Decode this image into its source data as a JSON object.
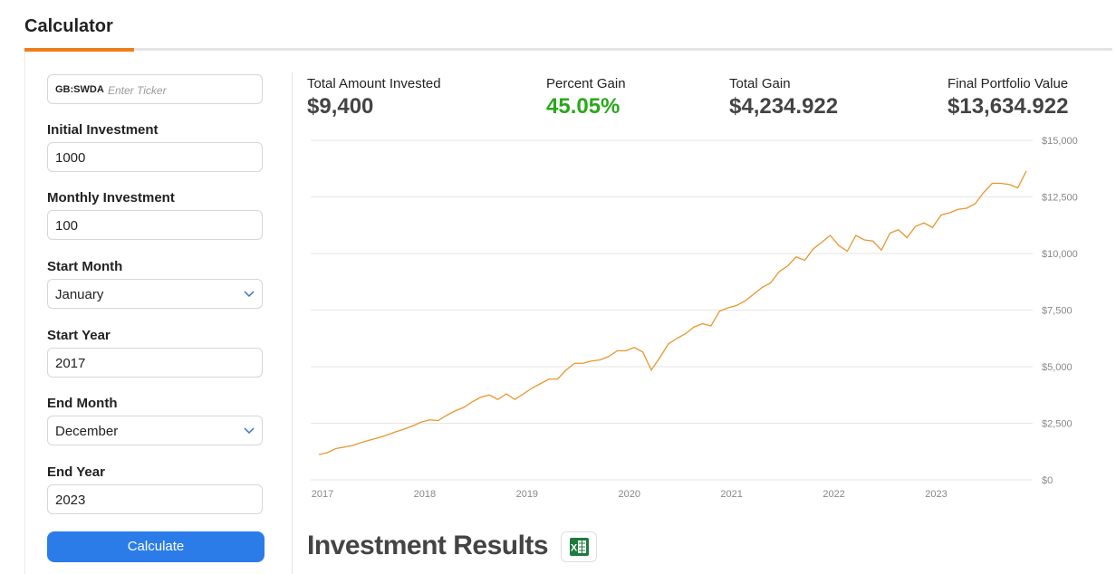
{
  "header": {
    "title": "Calculator"
  },
  "form": {
    "ticker": {
      "value": "GB:SWDA",
      "placeholder": "Enter Ticker"
    },
    "fields": [
      {
        "label": "Initial Investment",
        "value": "1000"
      },
      {
        "label": "Monthly Investment",
        "value": "100"
      },
      {
        "label": "Start Month",
        "value": "January"
      },
      {
        "label": "Start Year",
        "value": "2017"
      },
      {
        "label": "End Month",
        "value": "December"
      },
      {
        "label": "End Year",
        "value": "2023"
      }
    ],
    "button": "Calculate"
  },
  "stats": [
    {
      "label": "Total Amount Invested",
      "value": "$9,400"
    },
    {
      "label": "Percent Gain",
      "value": "45.05%"
    },
    {
      "label": "Total Gain",
      "value": "$4,234.922"
    },
    {
      "label": "Final Portfolio Value",
      "value": "$13,634.922"
    }
  ],
  "chart_data": {
    "type": "line",
    "categories": [
      "2017",
      null,
      null,
      null,
      null,
      null,
      null,
      null,
      null,
      null,
      null,
      null,
      "2018",
      null,
      null,
      null,
      null,
      null,
      null,
      null,
      null,
      null,
      null,
      null,
      "2019",
      null,
      null,
      null,
      null,
      null,
      null,
      null,
      null,
      null,
      null,
      null,
      "2020",
      null,
      null,
      null,
      null,
      null,
      null,
      null,
      null,
      null,
      null,
      null,
      "2021",
      null,
      null,
      null,
      null,
      null,
      null,
      null,
      null,
      null,
      null,
      null,
      "2022",
      null,
      null,
      null,
      null,
      null,
      null,
      null,
      null,
      null,
      null,
      null,
      "2023",
      null,
      null,
      null,
      null,
      null,
      null,
      null,
      null,
      null,
      null,
      null
    ],
    "values": [
      1120,
      1200,
      1380,
      1450,
      1520,
      1650,
      1760,
      1860,
      1980,
      2120,
      2240,
      2380,
      2550,
      2650,
      2620,
      2850,
      3050,
      3200,
      3450,
      3650,
      3750,
      3550,
      3800,
      3550,
      3800,
      4050,
      4250,
      4450,
      4450,
      4850,
      5150,
      5150,
      5250,
      5300,
      5450,
      5700,
      5700,
      5850,
      5650,
      4850,
      5400,
      6000,
      6250,
      6450,
      6750,
      6900,
      6800,
      7450,
      7600,
      7700,
      7900,
      8200,
      8500,
      8700,
      9200,
      9450,
      9850,
      9700,
      10200,
      10500,
      10800,
      10350,
      10100,
      10800,
      10600,
      10550,
      10150,
      10900,
      11050,
      10700,
      11200,
      11350,
      11150,
      11700,
      11800,
      11950,
      12000,
      12200,
      12700,
      13100,
      13100,
      13050,
      12900,
      13650
    ],
    "color": "#e8962e",
    "ylim": [
      0,
      15000
    ],
    "yticks": [
      {
        "value": 0,
        "label": "$0"
      },
      {
        "value": 2500,
        "label": "$2,500"
      },
      {
        "value": 5000,
        "label": "$5,000"
      },
      {
        "value": 7500,
        "label": "$7,500"
      },
      {
        "value": 10000,
        "label": "$10,000"
      },
      {
        "value": 12500,
        "label": "$12,500"
      },
      {
        "value": 15000,
        "label": "$15,000"
      }
    ],
    "grid": true
  },
  "results_title": "Investment Results"
}
